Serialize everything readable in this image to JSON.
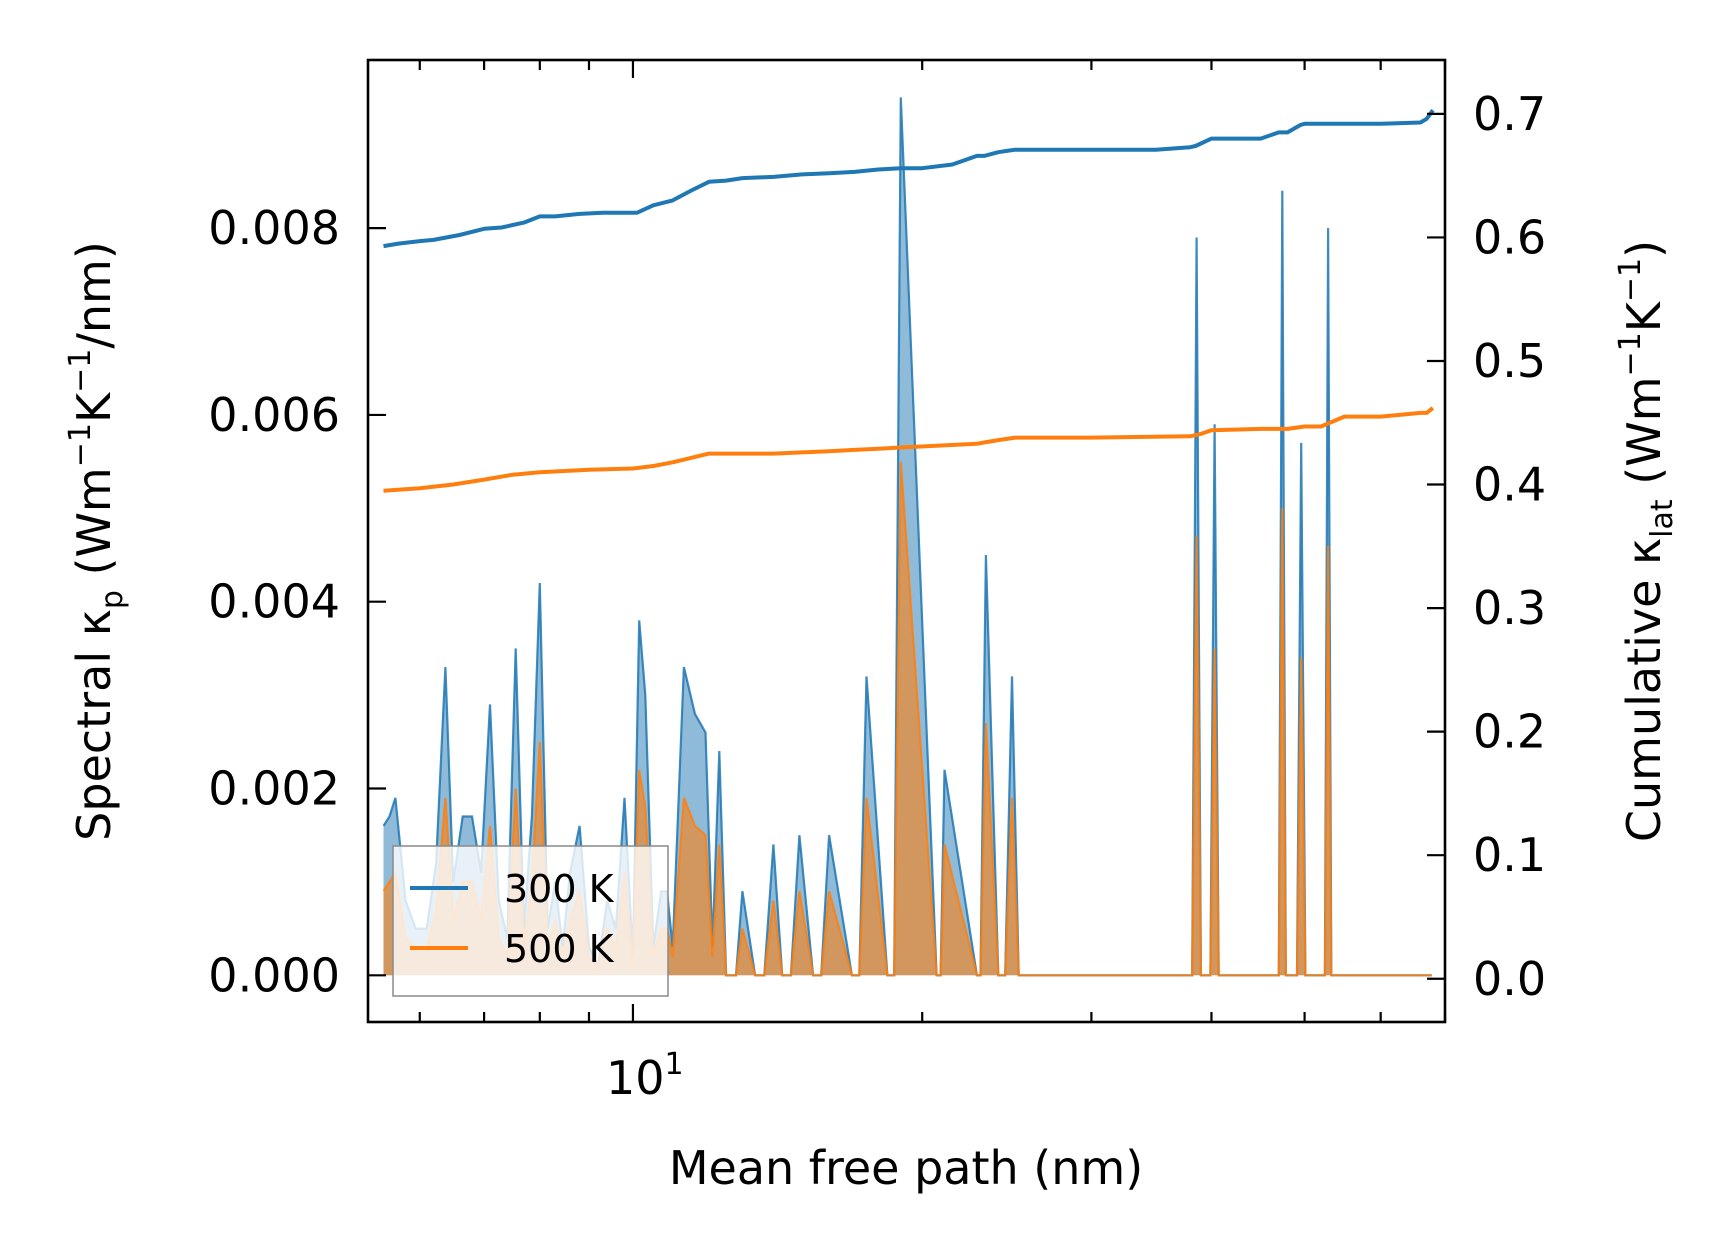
{
  "chart_data": {
    "type": "line",
    "title": "",
    "xlabel": "Mean free path (nm)",
    "xscale": "log",
    "xlim": [
      5.3,
      70
    ],
    "xtick_label": {
      "base": "10",
      "exp": "1",
      "value": 10
    },
    "ylabel_left": {
      "main": "Spectral κ",
      "sub": "p",
      "unit_open": " (Wm",
      "sup1": "−1",
      "unit_mid": "K",
      "sup2": "−1",
      "unit_close": "/nm)"
    },
    "ylabel_right": {
      "main": "Cumulative κ",
      "sub": "lat",
      "unit_open": " (Wm",
      "sup1": "−1",
      "unit_mid": "K",
      "sup2": "−1",
      "unit_close": ")"
    },
    "ylim_left": [
      -0.0005,
      0.0098
    ],
    "ylim_right": [
      -0.035,
      0.7436
    ],
    "yticks_left": [
      "0.000",
      "0.002",
      "0.004",
      "0.006",
      "0.008"
    ],
    "yticks_right": [
      "0.0",
      "0.1",
      "0.2",
      "0.3",
      "0.4",
      "0.5",
      "0.6",
      "0.7"
    ],
    "legend": {
      "position": "lower-left",
      "entries": [
        {
          "label": "300 K",
          "color": "#1f77b4"
        },
        {
          "label": "500 K",
          "color": "#ff7f0e"
        }
      ]
    },
    "spectral_series": [
      {
        "name": "300 K",
        "color": "#1f77b4",
        "x": [
          5.5,
          5.58,
          5.66,
          5.8,
          5.94,
          6.1,
          6.24,
          6.38,
          6.5,
          6.65,
          6.8,
          6.95,
          7.1,
          7.25,
          7.4,
          7.55,
          7.7,
          7.85,
          8.0,
          8.15,
          8.3,
          8.45,
          8.6,
          8.8,
          9.0,
          9.2,
          9.4,
          9.6,
          9.8,
          10.0,
          10.15,
          10.3,
          10.5,
          10.7,
          10.85,
          11.0,
          11.3,
          11.6,
          11.9,
          12.1,
          12.3,
          12.5,
          12.8,
          13.0,
          13.4,
          13.7,
          14.0,
          14.3,
          14.6,
          14.9,
          15.4,
          15.7,
          16.0,
          16.9,
          17.2,
          17.5,
          18.4,
          18.7,
          19.0,
          20.7,
          20.9,
          21.1,
          22.8,
          23.0,
          23.3,
          24.0,
          24.4,
          24.8,
          25.2,
          38.2,
          38.6,
          39.0,
          39.9,
          40.3,
          40.7,
          47.0,
          47.4,
          47.8,
          49.1,
          49.6,
          50.1,
          52.5,
          52.9,
          53.3,
          53.9,
          54.3,
          54.7,
          67.0,
          67.4,
          67.8
        ],
        "y": [
          0.0016,
          0.0017,
          0.0019,
          0.0008,
          0.0005,
          0.0005,
          0.0012,
          0.0033,
          0.001,
          0.0017,
          0.0017,
          0.0011,
          0.0029,
          0.0008,
          0.0004,
          0.0035,
          0.0005,
          0.0017,
          0.0042,
          0.0005,
          0.001,
          0.0003,
          0.0011,
          0.0016,
          0.0003,
          0.0001,
          0.0008,
          0.0005,
          0.0019,
          0.0002,
          0.0038,
          0.003,
          0.0003,
          0.0009,
          0.0009,
          0.0003,
          0.0033,
          0.0028,
          0.0026,
          0.0003,
          0.0024,
          0.0,
          0.0,
          0.0009,
          0.0,
          0.0,
          0.0014,
          0.0,
          0.0,
          0.0015,
          0.0,
          0.0,
          0.0015,
          0.0,
          0.0,
          0.0032,
          0.0,
          0.0,
          0.0094,
          0.0,
          0.0,
          0.0022,
          0.0,
          0.0,
          0.0045,
          0.0,
          0.0,
          0.0032,
          0.0,
          0.0,
          0.0079,
          0.0,
          0.0,
          0.0059,
          0.0,
          0.0,
          0.0084,
          0.0,
          0.0,
          0.0057,
          0.0,
          0.0,
          0.008,
          0.0,
          0.0,
          0.0,
          0.0,
          0.0,
          0.0,
          0.0
        ]
      },
      {
        "name": "500 K",
        "color": "#ff7f0e",
        "x": [
          5.5,
          5.58,
          5.66,
          5.8,
          5.94,
          6.1,
          6.24,
          6.38,
          6.5,
          6.65,
          6.8,
          6.95,
          7.1,
          7.25,
          7.4,
          7.55,
          7.7,
          7.85,
          8.0,
          8.15,
          8.3,
          8.45,
          8.6,
          8.8,
          9.0,
          9.2,
          9.4,
          9.6,
          9.8,
          10.0,
          10.15,
          10.3,
          10.5,
          10.7,
          10.85,
          11.0,
          11.3,
          11.6,
          11.9,
          12.1,
          12.3,
          12.5,
          12.8,
          13.0,
          13.4,
          13.7,
          14.0,
          14.3,
          14.6,
          14.9,
          15.4,
          15.7,
          16.0,
          16.9,
          17.2,
          17.5,
          18.4,
          18.7,
          19.0,
          20.7,
          20.9,
          21.1,
          22.8,
          23.0,
          23.3,
          24.0,
          24.4,
          24.8,
          25.2,
          38.2,
          38.6,
          39.0,
          39.9,
          40.3,
          40.7,
          47.0,
          47.4,
          47.8,
          49.1,
          49.6,
          50.1,
          52.5,
          52.9,
          53.3,
          53.9,
          54.3,
          54.7,
          67.0,
          67.4,
          67.8
        ],
        "y": [
          0.0009,
          0.001,
          0.0011,
          0.0004,
          0.0003,
          0.0003,
          0.0007,
          0.0019,
          0.0006,
          0.001,
          0.001,
          0.0006,
          0.0016,
          0.0004,
          0.0002,
          0.002,
          0.0003,
          0.001,
          0.0025,
          0.0003,
          0.0006,
          0.0002,
          0.0006,
          0.0009,
          0.0002,
          0.0001,
          0.0005,
          0.0003,
          0.0011,
          0.0001,
          0.0022,
          0.0018,
          0.0002,
          0.0005,
          0.0005,
          0.0002,
          0.0019,
          0.0016,
          0.0015,
          0.0002,
          0.0014,
          0.0,
          0.0,
          0.0005,
          0.0,
          0.0,
          0.0008,
          0.0,
          0.0,
          0.0009,
          0.0,
          0.0,
          0.0009,
          0.0,
          0.0,
          0.0019,
          0.0,
          0.0,
          0.0055,
          0.0,
          0.0,
          0.0014,
          0.0,
          0.0,
          0.0027,
          0.0,
          0.0,
          0.0019,
          0.0,
          0.0,
          0.0047,
          0.0,
          0.0,
          0.0035,
          0.0,
          0.0,
          0.005,
          0.0,
          0.0,
          0.0034,
          0.0,
          0.0,
          0.0046,
          0.0,
          0.0,
          0.0,
          0.0,
          0.0,
          0.0,
          0.0
        ]
      }
    ],
    "cumulative_series": [
      {
        "name": "300 K",
        "color": "#1f77b4",
        "x": [
          5.5,
          5.7,
          6.0,
          6.2,
          6.6,
          7.0,
          7.3,
          7.7,
          8.0,
          8.3,
          8.8,
          9.3,
          9.8,
          10.1,
          10.5,
          11.0,
          11.5,
          12.0,
          12.5,
          13.0,
          14.0,
          15.0,
          16.0,
          17.0,
          18.0,
          19.0,
          20.0,
          21.5,
          22.8,
          23.2,
          24.0,
          24.5,
          25.0,
          30.0,
          35.0,
          38.0,
          38.5,
          40.0,
          45.0,
          47.0,
          48.0,
          49.5,
          50.0,
          52.0,
          53.0,
          60.0,
          66.0,
          67.0,
          68.0
        ],
        "y": [
          0.593,
          0.595,
          0.597,
          0.598,
          0.602,
          0.607,
          0.608,
          0.612,
          0.617,
          0.617,
          0.619,
          0.62,
          0.62,
          0.62,
          0.626,
          0.63,
          0.638,
          0.645,
          0.646,
          0.648,
          0.649,
          0.651,
          0.652,
          0.653,
          0.655,
          0.656,
          0.656,
          0.659,
          0.666,
          0.666,
          0.669,
          0.67,
          0.671,
          0.671,
          0.671,
          0.673,
          0.674,
          0.68,
          0.68,
          0.685,
          0.685,
          0.691,
          0.692,
          0.692,
          0.692,
          0.692,
          0.693,
          0.696,
          0.703
        ]
      },
      {
        "name": "500 K",
        "color": "#ff7f0e",
        "x": [
          5.5,
          6.0,
          6.5,
          7.0,
          7.5,
          8.0,
          9.0,
          10.0,
          10.5,
          11.0,
          12.0,
          13.0,
          14.0,
          15.0,
          16.0,
          17.0,
          18.0,
          19.0,
          22.8,
          23.2,
          24.0,
          25.0,
          30.0,
          38.0,
          39.0,
          40.0,
          45.0,
          47.0,
          48.0,
          50.0,
          52.0,
          55.0,
          60.0,
          66.0,
          67.0,
          68.0
        ],
        "y": [
          0.395,
          0.397,
          0.4,
          0.404,
          0.408,
          0.41,
          0.412,
          0.413,
          0.415,
          0.418,
          0.425,
          0.425,
          0.425,
          0.426,
          0.427,
          0.428,
          0.429,
          0.43,
          0.433,
          0.434,
          0.436,
          0.438,
          0.438,
          0.439,
          0.441,
          0.444,
          0.445,
          0.445,
          0.445,
          0.447,
          0.447,
          0.455,
          0.455,
          0.458,
          0.458,
          0.462
        ]
      }
    ]
  }
}
